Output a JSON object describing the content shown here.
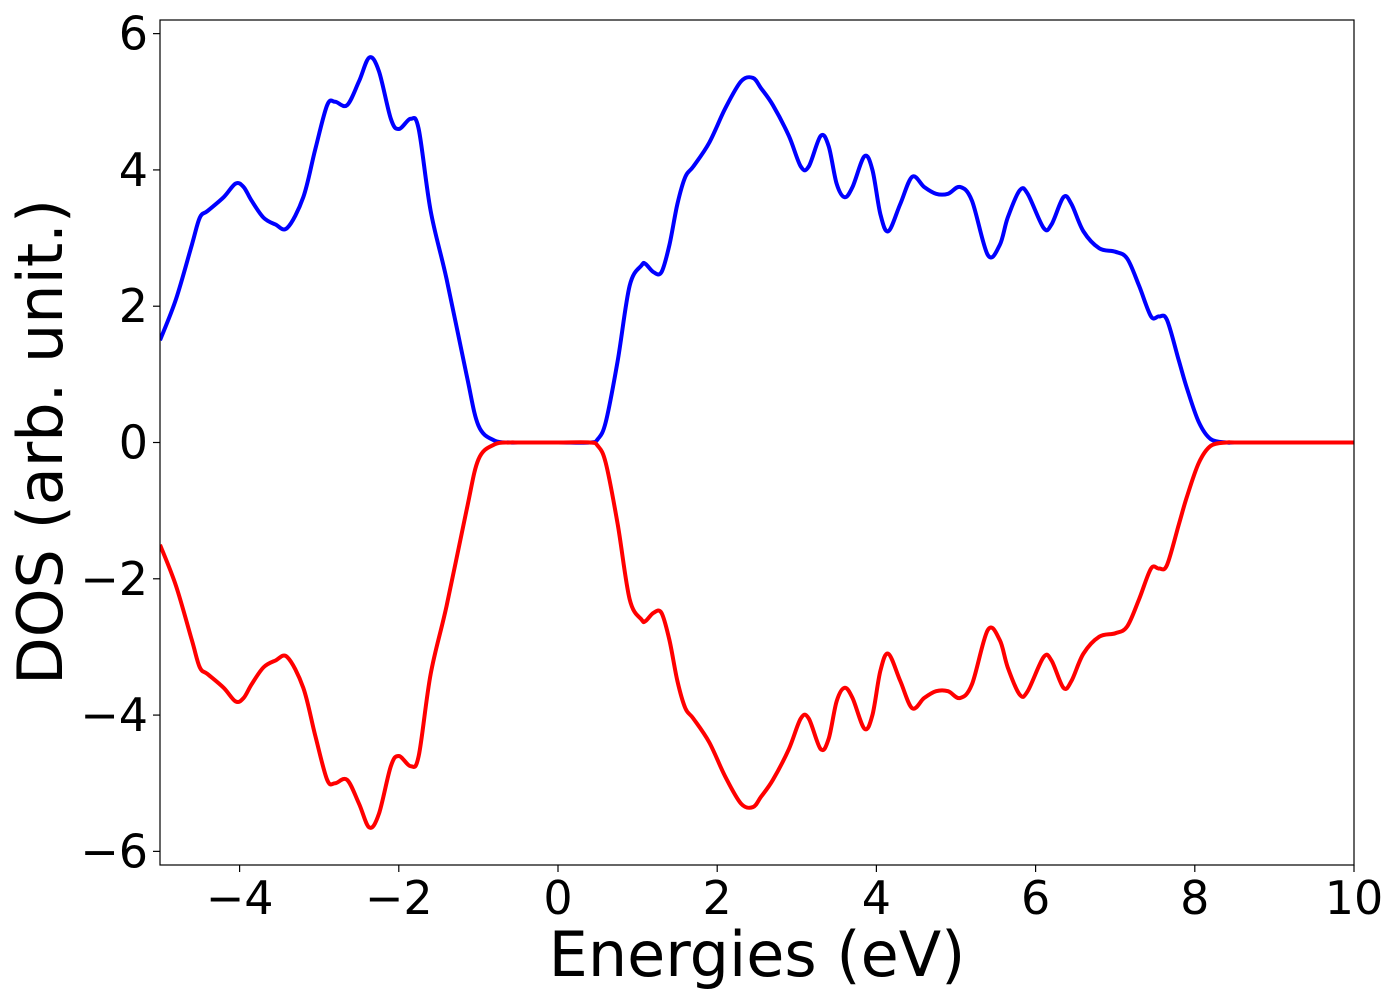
{
  "chart_data": {
    "type": "line",
    "title": "",
    "xlabel": "Energies (eV)",
    "ylabel": "DOS (arb. unit.)",
    "xlim": [
      -5,
      10
    ],
    "ylim": [
      -6.2,
      6.2
    ],
    "grid": false,
    "legend": "none",
    "x_ticks": [
      -4,
      -2,
      0,
      2,
      4,
      6,
      8,
      10
    ],
    "x_tick_labels": [
      "−4",
      "−2",
      "0",
      "2",
      "4",
      "6",
      "8",
      "10"
    ],
    "y_ticks": [
      -6,
      -4,
      -2,
      0,
      2,
      4,
      6
    ],
    "y_tick_labels": [
      "−6",
      "−4",
      "−2",
      "0",
      "2",
      "4",
      "6"
    ],
    "series": [
      {
        "color": "#0000ff",
        "x": [
          -5.0,
          -4.8,
          -4.6,
          -4.5,
          -4.4,
          -4.2,
          -4.05,
          -3.95,
          -3.85,
          -3.7,
          -3.55,
          -3.4,
          -3.2,
          -3.05,
          -2.9,
          -2.8,
          -2.65,
          -2.5,
          -2.37,
          -2.25,
          -2.1,
          -2.0,
          -1.85,
          -1.75,
          -1.6,
          -1.4,
          -1.15,
          -1.0,
          -0.8,
          -0.6,
          -0.5,
          0.0,
          0.4,
          0.5,
          0.6,
          0.75,
          0.9,
          1.05,
          1.1,
          1.2,
          1.3,
          1.4,
          1.5,
          1.6,
          1.7,
          1.9,
          2.1,
          2.3,
          2.45,
          2.55,
          2.7,
          2.9,
          3.05,
          3.15,
          3.3,
          3.4,
          3.5,
          3.6,
          3.7,
          3.85,
          3.95,
          4.05,
          4.15,
          4.3,
          4.45,
          4.6,
          4.75,
          4.9,
          5.05,
          5.2,
          5.4,
          5.55,
          5.65,
          5.8,
          5.9,
          6.1,
          6.2,
          6.35,
          6.45,
          6.6,
          6.8,
          7.0,
          7.15,
          7.3,
          7.45,
          7.55,
          7.65,
          7.8,
          7.9,
          8.05,
          8.2,
          8.4,
          8.5,
          9.0,
          10.0
        ],
        "values": [
          1.5,
          2.1,
          2.9,
          3.3,
          3.4,
          3.6,
          3.8,
          3.75,
          3.55,
          3.3,
          3.2,
          3.15,
          3.6,
          4.3,
          4.95,
          5.0,
          4.95,
          5.3,
          5.65,
          5.45,
          4.75,
          4.6,
          4.75,
          4.6,
          3.4,
          2.4,
          1.0,
          0.25,
          0.03,
          0.0,
          0.0,
          0.0,
          0.0,
          0.05,
          0.3,
          1.2,
          2.3,
          2.6,
          2.62,
          2.5,
          2.5,
          2.9,
          3.5,
          3.9,
          4.05,
          4.4,
          4.9,
          5.3,
          5.35,
          5.2,
          4.95,
          4.5,
          4.05,
          4.05,
          4.5,
          4.35,
          3.8,
          3.6,
          3.75,
          4.2,
          4.0,
          3.35,
          3.1,
          3.5,
          3.9,
          3.75,
          3.65,
          3.65,
          3.75,
          3.55,
          2.75,
          2.9,
          3.3,
          3.7,
          3.65,
          3.15,
          3.2,
          3.6,
          3.5,
          3.1,
          2.85,
          2.8,
          2.7,
          2.3,
          1.85,
          1.85,
          1.8,
          1.2,
          0.8,
          0.3,
          0.05,
          0.0,
          0.0,
          0.0,
          0.0
        ]
      },
      {
        "color": "#ff0000",
        "x": [
          -5.0,
          -4.8,
          -4.6,
          -4.5,
          -4.4,
          -4.2,
          -4.05,
          -3.95,
          -3.85,
          -3.7,
          -3.55,
          -3.4,
          -3.2,
          -3.05,
          -2.9,
          -2.8,
          -2.65,
          -2.5,
          -2.37,
          -2.25,
          -2.1,
          -2.0,
          -1.85,
          -1.75,
          -1.6,
          -1.4,
          -1.15,
          -1.0,
          -0.8,
          -0.6,
          -0.5,
          0.0,
          0.4,
          0.5,
          0.6,
          0.75,
          0.9,
          1.05,
          1.1,
          1.2,
          1.3,
          1.4,
          1.5,
          1.6,
          1.7,
          1.9,
          2.1,
          2.3,
          2.45,
          2.55,
          2.7,
          2.9,
          3.05,
          3.15,
          3.3,
          3.4,
          3.5,
          3.6,
          3.7,
          3.85,
          3.95,
          4.05,
          4.15,
          4.3,
          4.45,
          4.6,
          4.75,
          4.9,
          5.05,
          5.2,
          5.4,
          5.55,
          5.65,
          5.8,
          5.9,
          6.1,
          6.2,
          6.35,
          6.45,
          6.6,
          6.8,
          7.0,
          7.15,
          7.3,
          7.45,
          7.55,
          7.65,
          7.8,
          7.9,
          8.05,
          8.2,
          8.4,
          8.5,
          9.0,
          10.0
        ],
        "values": [
          -1.5,
          -2.1,
          -2.9,
          -3.3,
          -3.4,
          -3.6,
          -3.8,
          -3.75,
          -3.55,
          -3.3,
          -3.2,
          -3.15,
          -3.6,
          -4.3,
          -4.95,
          -5.0,
          -4.95,
          -5.3,
          -5.65,
          -5.45,
          -4.75,
          -4.6,
          -4.75,
          -4.6,
          -3.4,
          -2.4,
          -1.0,
          -0.25,
          -0.03,
          0.0,
          0.0,
          0.0,
          0.0,
          -0.05,
          -0.3,
          -1.2,
          -2.3,
          -2.6,
          -2.62,
          -2.5,
          -2.5,
          -2.9,
          -3.5,
          -3.9,
          -4.05,
          -4.4,
          -4.9,
          -5.3,
          -5.35,
          -5.2,
          -4.95,
          -4.5,
          -4.05,
          -4.05,
          -4.5,
          -4.35,
          -3.8,
          -3.6,
          -3.75,
          -4.2,
          -4.0,
          -3.35,
          -3.1,
          -3.5,
          -3.9,
          -3.75,
          -3.65,
          -3.65,
          -3.75,
          -3.55,
          -2.75,
          -2.9,
          -3.3,
          -3.7,
          -3.65,
          -3.15,
          -3.2,
          -3.6,
          -3.5,
          -3.1,
          -2.85,
          -2.8,
          -2.7,
          -2.3,
          -1.85,
          -1.85,
          -1.8,
          -1.2,
          -0.8,
          -0.3,
          -0.05,
          0.0,
          0.0,
          0.0,
          0.0
        ]
      }
    ]
  }
}
